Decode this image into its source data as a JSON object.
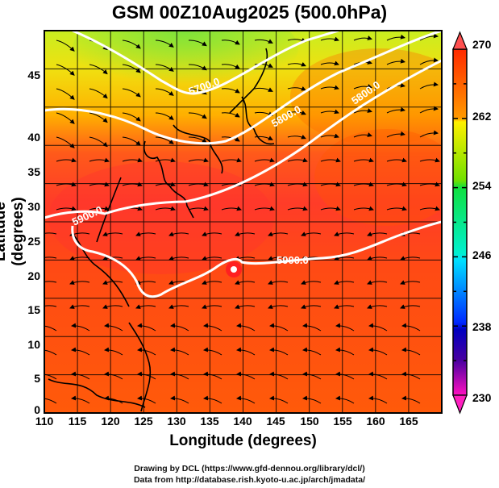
{
  "title": "GSM 00Z10Aug2025 (500.0hPa)",
  "x_axis": {
    "label": "Longitude (degrees)",
    "ticks": [
      "110",
      "115",
      "120",
      "125",
      "130",
      "135",
      "140",
      "145",
      "150",
      "155",
      "160",
      "165"
    ],
    "range": [
      110,
      170
    ]
  },
  "y_axis": {
    "label": "Latitude  (degrees)",
    "ticks": [
      "0",
      "5",
      "10",
      "15",
      "20",
      "25",
      "30",
      "35",
      "40",
      "45"
    ],
    "range": [
      0,
      50
    ]
  },
  "colorbar": {
    "ticks": [
      "270",
      "262",
      "254",
      "246",
      "238",
      "230"
    ],
    "range": [
      230,
      270
    ],
    "colors": [
      "#ff2a00",
      "#ff8c00",
      "#ffe600",
      "#b4f000",
      "#1ee61e",
      "#00f0c8",
      "#00e6ff",
      "#1e78ff",
      "#0000c8",
      "#5a00a0",
      "#ff1eb4"
    ]
  },
  "contours": {
    "labels": [
      "5700.0",
      "5800.0",
      "5800.0",
      "5900.0",
      "5900.0",
      "5900.0"
    ]
  },
  "credits": [
    "Drawing by DCL (https://www.gfd-dennou.org/library/dcl/)",
    "Data from http://database.rish.kyoto-u.ac.jp/arch/jmadata/"
  ]
}
